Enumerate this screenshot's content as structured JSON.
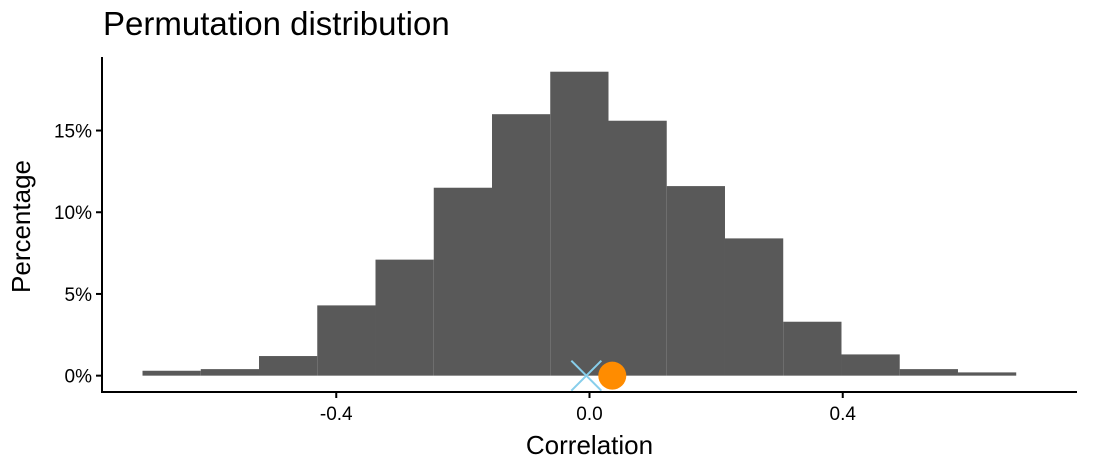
{
  "chart_data": {
    "type": "bar",
    "title": "Permutation distribution",
    "xlabel": "Correlation",
    "ylabel": "Percentage",
    "bin_width": 0.092,
    "bins": [
      {
        "x0": -0.706,
        "x1": -0.614,
        "value": 0.3
      },
      {
        "x0": -0.614,
        "x1": -0.522,
        "value": 0.4
      },
      {
        "x0": -0.522,
        "x1": -0.43,
        "value": 1.2
      },
      {
        "x0": -0.43,
        "x1": -0.338,
        "value": 4.3
      },
      {
        "x0": -0.338,
        "x1": -0.246,
        "value": 7.1
      },
      {
        "x0": -0.246,
        "x1": -0.154,
        "value": 11.5
      },
      {
        "x0": -0.154,
        "x1": -0.062,
        "value": 16.0
      },
      {
        "x0": -0.062,
        "x1": 0.03,
        "value": 18.6
      },
      {
        "x0": 0.03,
        "x1": 0.122,
        "value": 15.6
      },
      {
        "x0": 0.122,
        "x1": 0.214,
        "value": 11.6
      },
      {
        "x0": 0.214,
        "x1": 0.306,
        "value": 8.4
      },
      {
        "x0": 0.306,
        "x1": 0.398,
        "value": 3.3
      },
      {
        "x0": 0.398,
        "x1": 0.49,
        "value": 1.3
      },
      {
        "x0": 0.49,
        "x1": 0.582,
        "value": 0.4
      },
      {
        "x0": 0.582,
        "x1": 0.674,
        "value": 0.2
      }
    ],
    "markers": [
      {
        "shape": "x",
        "x": -0.005,
        "y": 0,
        "color": "#87ceeb"
      },
      {
        "shape": "circle",
        "x": 0.036,
        "y": 0,
        "color": "#ff8c00"
      }
    ],
    "xlim": [
      -0.77,
      0.77
    ],
    "ylim": [
      -1,
      19.5
    ],
    "x_ticks": [
      -0.4,
      0.0,
      0.4
    ],
    "x_tick_labels": [
      "-0.4",
      "0.0",
      "0.4"
    ],
    "y_ticks": [
      0,
      5,
      10,
      15
    ],
    "y_tick_labels": [
      "0%",
      "5%",
      "10%",
      "15%"
    ],
    "bar_color": "#595959",
    "grid": false
  }
}
